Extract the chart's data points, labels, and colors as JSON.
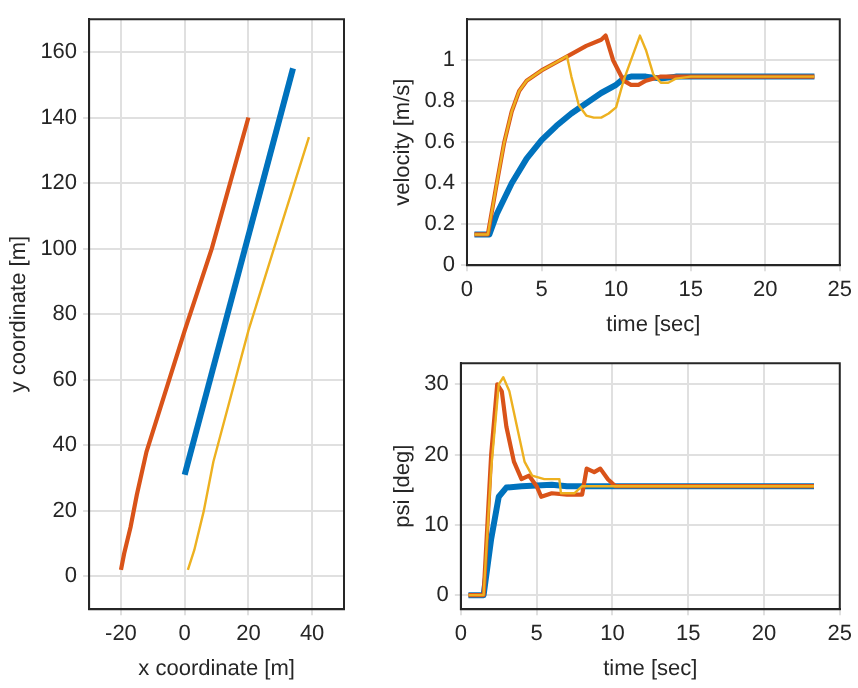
{
  "chart_data": [
    {
      "type": "line",
      "xlabel": "x coordinate [m]",
      "ylabel": "y coordinate [m]",
      "xlim": [
        -30,
        50
      ],
      "ylim": [
        -10,
        170
      ],
      "xticks": [
        -20,
        0,
        20,
        40
      ],
      "yticks": [
        0,
        20,
        40,
        60,
        80,
        100,
        120,
        140,
        160
      ],
      "grid": true,
      "legend": false,
      "series": [
        {
          "color": "#0072bd",
          "x": [
            0,
            34
          ],
          "values": [
            31,
            155
          ]
        },
        {
          "color": "#d95319",
          "x": [
            -20,
            -19,
            -17,
            -15,
            -12,
            0,
            8.5,
            20
          ],
          "values": [
            2,
            7,
            15,
            25,
            38,
            75,
            100,
            140
          ]
        },
        {
          "color": "#edb120",
          "x": [
            1,
            3,
            6,
            9,
            20,
            28,
            39
          ],
          "values": [
            2,
            8,
            20,
            35,
            75,
            100,
            134
          ]
        }
      ]
    },
    {
      "type": "line",
      "xlabel": "time [sec]",
      "ylabel": "velocity [m/s]",
      "xlim": [
        0,
        25
      ],
      "ylim": [
        0,
        1.2
      ],
      "xticks": [
        0,
        5,
        10,
        15,
        20,
        25
      ],
      "yticks": [
        0,
        0.2,
        0.4,
        0.6,
        0.8,
        1
      ],
      "grid": true,
      "legend": false,
      "series": [
        {
          "color": "#0072bd",
          "x": [
            0.5,
            1.5,
            2,
            3,
            4,
            5,
            6,
            7,
            8,
            9,
            10,
            10.5,
            11,
            12,
            13,
            14,
            23.3
          ],
          "values": [
            0.15,
            0.15,
            0.25,
            0.4,
            0.52,
            0.61,
            0.68,
            0.74,
            0.79,
            0.84,
            0.88,
            0.91,
            0.92,
            0.92,
            0.91,
            0.92,
            0.92
          ]
        },
        {
          "color": "#d95319",
          "x": [
            0.5,
            1.4,
            2,
            2.5,
            3,
            3.5,
            4,
            5,
            6,
            7,
            8,
            9,
            9.3,
            9.8,
            10.5,
            11,
            11.5,
            12,
            13,
            23.3
          ],
          "values": [
            0.15,
            0.15,
            0.4,
            0.6,
            0.75,
            0.85,
            0.9,
            0.95,
            0.99,
            1.03,
            1.07,
            1.1,
            1.12,
            1,
            0.9,
            0.88,
            0.88,
            0.9,
            0.92,
            0.92
          ]
        },
        {
          "color": "#edb120",
          "x": [
            0.5,
            1.4,
            2,
            2.5,
            3,
            3.5,
            4,
            5,
            6,
            6.7,
            7,
            7.5,
            8,
            8.5,
            9,
            9.5,
            10,
            10.5,
            11,
            11.6,
            12,
            12.5,
            13,
            13.5,
            14,
            15,
            23.3
          ],
          "values": [
            0.15,
            0.15,
            0.4,
            0.6,
            0.75,
            0.85,
            0.9,
            0.95,
            0.99,
            1.02,
            0.92,
            0.78,
            0.73,
            0.72,
            0.72,
            0.74,
            0.77,
            0.9,
            1,
            1.12,
            1.05,
            0.93,
            0.89,
            0.89,
            0.91,
            0.92,
            0.92
          ]
        }
      ]
    },
    {
      "type": "line",
      "xlabel": "time [sec]",
      "ylabel": "psi [deg]",
      "xlim": [
        0,
        25
      ],
      "ylim": [
        -2,
        33
      ],
      "xticks": [
        0,
        5,
        10,
        15,
        20,
        25
      ],
      "yticks": [
        0,
        10,
        20,
        30
      ],
      "grid": true,
      "legend": false,
      "series": [
        {
          "color": "#0072bd",
          "x": [
            0.5,
            1.5,
            2,
            2.5,
            3,
            4,
            6,
            7,
            23.3
          ],
          "values": [
            0,
            0,
            8,
            14,
            15.3,
            15.5,
            15.7,
            15.5,
            15.5
          ]
        },
        {
          "color": "#d95319",
          "x": [
            0.5,
            1.5,
            2,
            2.4,
            2.7,
            3,
            3.5,
            4,
            4.5,
            5,
            5.3,
            6,
            7,
            8,
            8.3,
            8.8,
            9.2,
            9.7,
            10.2,
            11,
            23.3
          ],
          "values": [
            0,
            0,
            20,
            30,
            29,
            24,
            19,
            16.5,
            17,
            15.5,
            14,
            14.5,
            14.3,
            14.3,
            18,
            17.5,
            18,
            16.5,
            15.5,
            15.5,
            15.5
          ]
        },
        {
          "color": "#edb120",
          "x": [
            0.5,
            1.5,
            2,
            2.5,
            2.8,
            3.2,
            3.7,
            4.2,
            4.7,
            5.5,
            6.5,
            6.6,
            7.5,
            8,
            23.3
          ],
          "values": [
            0,
            0,
            18,
            30,
            31,
            29,
            24,
            19,
            17,
            16.5,
            16.5,
            14.5,
            14.5,
            15.5,
            15.5
          ]
        }
      ]
    }
  ]
}
